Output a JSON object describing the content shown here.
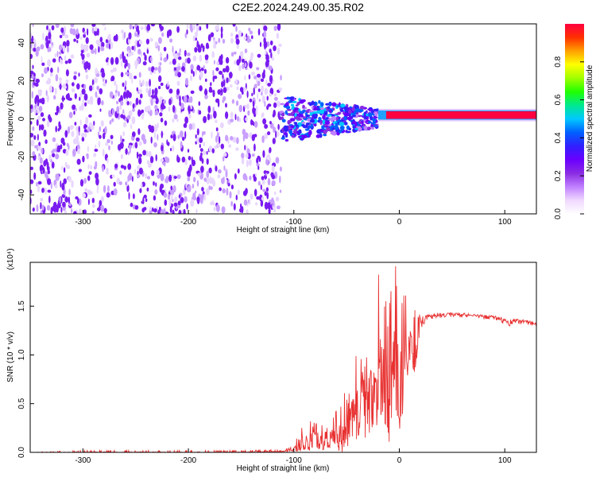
{
  "page": {
    "title": "C2E2.2024.249.00.35.R02"
  },
  "colors": {
    "snr_line": "#e83030",
    "colorbar": [
      "#ffffff",
      "#f0d8ff",
      "#c080ff",
      "#8a2be2",
      "#6a00ff",
      "#3020ff",
      "#0060ff",
      "#00c8ff",
      "#00e890",
      "#20ff00",
      "#a0ff00",
      "#ffff00",
      "#ffa000",
      "#ff3000",
      "#ff0040"
    ]
  },
  "chart_data": [
    {
      "type": "heatmap",
      "title": "C2E2.2024.249.00.35.R02",
      "xlabel": "Height of straight line (km)",
      "ylabel": "Frequency (Hz)",
      "xlim": [
        -350,
        130
      ],
      "ylim": [
        -50,
        50
      ],
      "xticks": [
        -300,
        -200,
        -100,
        0,
        100
      ],
      "yticks": [
        -40,
        -20,
        0,
        20,
        40
      ],
      "colorbar": {
        "label": "Normalized spectral amplitude",
        "range": [
          0.0,
          1.0
        ],
        "ticks": [
          0.0,
          0.2,
          0.4,
          0.6,
          0.8
        ]
      },
      "regions": [
        {
          "x": [
            -350,
            -112
          ],
          "y": [
            -50,
            50
          ],
          "amplitude": [
            0.05,
            0.15
          ],
          "pattern": "noise speckle"
        },
        {
          "x": [
            -112,
            -20
          ],
          "y": [
            -12,
            12
          ],
          "amplitude": [
            0.15,
            0.5
          ],
          "pattern": "spread signal near 0 Hz"
        },
        {
          "x": [
            -20,
            130
          ],
          "y": [
            0,
            4
          ],
          "amplitude": [
            0.7,
            1.0
          ],
          "pattern": "narrow line near 2 Hz"
        }
      ]
    },
    {
      "type": "line",
      "xlabel": "Height of straight line (km)",
      "ylabel": "SNR (10 * v/v)",
      "yscale_label": "(x10⁴)",
      "xlim": [
        -350,
        130
      ],
      "ylim": [
        0,
        1.95
      ],
      "xticks": [
        -300,
        -200,
        -100,
        0,
        100
      ],
      "yticks": [
        0.0,
        0.5,
        1.0,
        1.5
      ],
      "ytick_labels": [
        "0.0",
        "0.5",
        "1.0",
        "1.5"
      ],
      "series": [
        {
          "x": [
            -350,
            -300,
            -250,
            -200,
            -150,
            -110,
            -100,
            -95,
            -90,
            -85,
            -80,
            -75,
            -70,
            -65,
            -60,
            -55,
            -50,
            -45,
            -40,
            -35,
            -30,
            -25,
            -20,
            -15,
            -10,
            -5,
            0,
            5,
            10,
            15,
            20,
            25,
            30,
            35,
            40,
            50,
            60,
            70,
            80,
            90,
            95,
            100,
            105,
            110,
            120,
            130
          ],
          "y": [
            0.0,
            0.0,
            0.0,
            0.0,
            0.0,
            0.01,
            0.03,
            0.08,
            0.12,
            0.1,
            0.14,
            0.1,
            0.08,
            0.15,
            0.2,
            0.12,
            0.3,
            0.45,
            0.4,
            0.6,
            0.7,
            0.5,
            0.9,
            0.75,
            0.55,
            1.0,
            0.6,
            0.8,
            1.2,
            0.9,
            1.3,
            1.38,
            1.4,
            1.41,
            1.41,
            1.42,
            1.41,
            1.41,
            1.4,
            1.39,
            1.37,
            1.35,
            1.32,
            1.35,
            1.34,
            1.32
          ],
          "max_y": [
            0.0,
            0.02,
            0.02,
            0.02,
            0.02,
            0.03,
            0.06,
            0.28,
            0.3,
            0.35,
            0.3,
            0.33,
            0.25,
            0.33,
            0.45,
            0.6,
            0.62,
            0.75,
            1.1,
            1.0,
            1.25,
            1.1,
            1.88,
            1.7,
            1.5,
            1.95,
            1.85,
            1.9,
            1.6,
            1.5,
            1.4,
            1.42,
            1.42,
            1.43,
            1.43,
            1.43,
            1.43,
            1.42,
            1.41,
            1.4,
            1.39,
            1.37,
            1.37,
            1.37,
            1.36,
            1.33
          ],
          "min_y": [
            0.0,
            0.0,
            0.0,
            0.0,
            0.0,
            0.0,
            0.0,
            0.01,
            0.02,
            0.02,
            0.03,
            0.02,
            0.03,
            0.04,
            0.05,
            0.05,
            0.06,
            0.08,
            0.08,
            0.1,
            0.15,
            0.2,
            0.25,
            0.3,
            0.05,
            0.4,
            0.3,
            0.4,
            0.9,
            1.1,
            1.25,
            1.34,
            1.37,
            1.38,
            1.38,
            1.39,
            1.38,
            1.38,
            1.37,
            1.36,
            1.33,
            1.31,
            1.29,
            1.32,
            1.31,
            1.29
          ]
        }
      ]
    }
  ]
}
